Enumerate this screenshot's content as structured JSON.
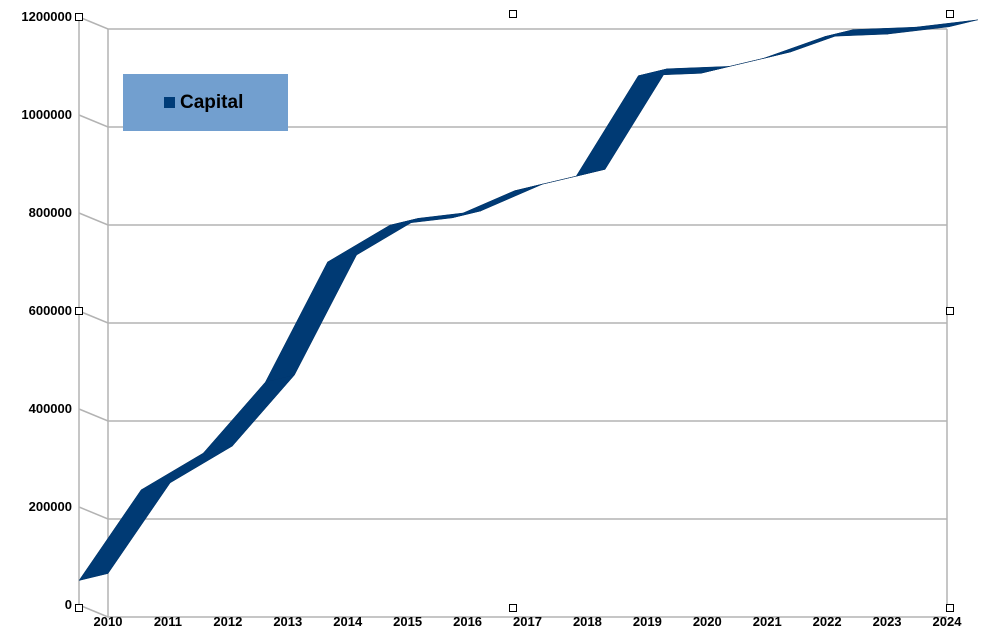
{
  "chart_data": {
    "type": "line",
    "style": "3d-ribbon",
    "categories": [
      "2010",
      "2011",
      "2012",
      "2013",
      "2014",
      "2015",
      "2016",
      "2017",
      "2018",
      "2019",
      "2020",
      "2021",
      "2022",
      "2023",
      "2024"
    ],
    "series": [
      {
        "name": "Capital",
        "values": [
          50000,
          235000,
          310000,
          455000,
          700000,
          775000,
          790000,
          845000,
          875000,
          1080000,
          1085000,
          1115000,
          1160000,
          1165000,
          1180000
        ],
        "color": "#003c78"
      }
    ],
    "y_ticks": [
      "0",
      "200000",
      "400000",
      "600000",
      "800000",
      "1000000",
      "1200000"
    ],
    "ylim": [
      0,
      1200000
    ],
    "grid": true,
    "legend_position": "top-left",
    "title": "",
    "xlabel": "",
    "ylabel": ""
  },
  "legend": {
    "label": "Capital"
  },
  "colors": {
    "ribbon_front": "#003c78",
    "ribbon_top": "#022f5e",
    "grid": "#b3b3b3",
    "legend_bg": "#729fcf"
  }
}
